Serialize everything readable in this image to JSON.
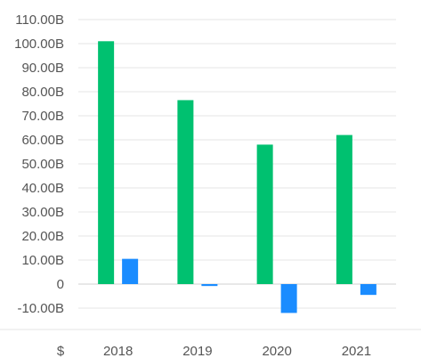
{
  "chart_data": {
    "type": "bar",
    "categories": [
      "2018",
      "2019",
      "2020",
      "2021"
    ],
    "series": [
      {
        "color": "#00c170",
        "values": [
          101.0,
          76.5,
          58.0,
          62.0
        ]
      },
      {
        "color": "#1a8cff",
        "values": [
          10.5,
          -0.8,
          -12.0,
          -4.5
        ]
      }
    ],
    "y_ticks": [
      "110.00B",
      "100.00B",
      "90.00B",
      "80.00B",
      "70.00B",
      "60.00B",
      "50.00B",
      "40.00B",
      "30.00B",
      "20.00B",
      "10.00B",
      "0",
      "-10.00B"
    ],
    "ylim": [
      -10,
      110
    ],
    "unit_label": "$",
    "grid": true
  }
}
